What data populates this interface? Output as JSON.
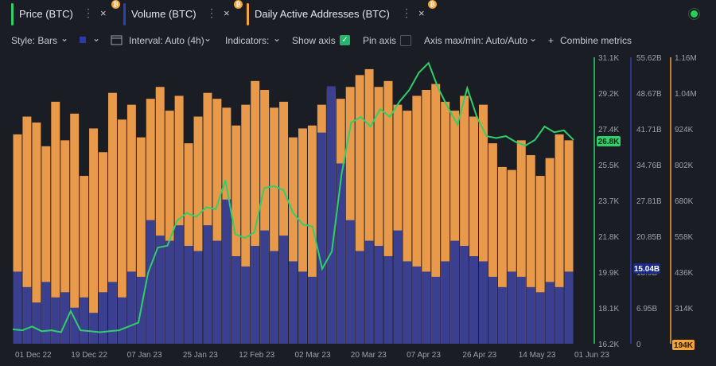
{
  "tabs": [
    {
      "label": "Price (BTC)",
      "color": "#2fd06a",
      "close": "×",
      "more": "⋮",
      "coin": "₿"
    },
    {
      "label": "Volume (BTC)",
      "color": "#2f3fb5",
      "close": "×",
      "more": "⋮",
      "coin": "₿"
    },
    {
      "label": "Daily Active Addresses (BTC)",
      "color": "#f2a33a",
      "close": "×",
      "more": "⋮",
      "coin": "₿"
    }
  ],
  "toolbar": {
    "style": "Style: Bars",
    "interval": "Interval: Auto (4h)",
    "indicators": "Indicators:",
    "show_axis": "Show axis",
    "pin_axis": "Pin axis",
    "axis_maxmin": "Axis max/min: Auto/Auto",
    "combine": "Combine metrics",
    "plus": "+",
    "chev": "⌄"
  },
  "colors": {
    "price": "#2fd06a",
    "volume": "#3a3f8f",
    "active": "#e89a4a",
    "background": "#1b1d25"
  },
  "chart_data": {
    "type": "bar",
    "x_ticks": [
      "01 Dec 22",
      "19 Dec 22",
      "07 Jan 23",
      "25 Jan 23",
      "12 Feb 23",
      "02 Mar 23",
      "20 Mar 23",
      "07 Apr 23",
      "26 Apr 23",
      "14 May 23",
      "01 Jun 23"
    ],
    "price_axis": {
      "ticks": [
        "31.1K",
        "29.2K",
        "27.4K",
        "25.5K",
        "23.7K",
        "21.8K",
        "19.9K",
        "18.1K",
        "16.2K"
      ],
      "ylim": [
        16200,
        31100
      ],
      "current": "26.8K"
    },
    "volume_axis": {
      "ticks": [
        "55.62B",
        "48.67B",
        "41.71B",
        "34.76B",
        "27.81B",
        "20.85B",
        "13.9B",
        "6.95B",
        "0"
      ],
      "ylim": [
        0,
        55620000000
      ],
      "current": "15.04B"
    },
    "active_axis": {
      "ticks": [
        "1.16M",
        "1.04M",
        "924K",
        "802K",
        "680K",
        "558K",
        "436K",
        "314K"
      ],
      "ylim": [
        194000,
        1160000
      ],
      "min_label": "194K"
    },
    "series": [
      {
        "name": "Price (BTC)",
        "style": "line",
        "color": "#2fd06a",
        "values": [
          16950,
          16900,
          17100,
          16850,
          16900,
          16800,
          17900,
          16900,
          16850,
          16800,
          16850,
          16900,
          17100,
          17300,
          19900,
          21200,
          21300,
          22600,
          23000,
          22800,
          23300,
          23200,
          24700,
          21900,
          21700,
          22000,
          24300,
          24400,
          24200,
          23000,
          22400,
          22300,
          20100,
          21000,
          25000,
          27700,
          28000,
          27500,
          28400,
          28000,
          28800,
          29400,
          30300,
          30800,
          29500,
          28500,
          27600,
          29500,
          28000,
          27000,
          26900,
          27000,
          26700,
          26500,
          26800,
          27500,
          27200,
          27300,
          26800
        ]
      },
      {
        "name": "Volume (BTC)",
        "style": "bars",
        "color": "#3a3f8f",
        "values": [
          14000000000.0,
          11000000000.0,
          8000000000.0,
          12000000000.0,
          9000000000.0,
          10000000000.0,
          7000000000.0,
          9000000000.0,
          6000000000.0,
          10000000000.0,
          12000000000.0,
          9000000000.0,
          14000000000.0,
          13000000000.0,
          24000000000.0,
          21000000000.0,
          20000000000.0,
          23000000000.0,
          19000000000.0,
          18000000000.0,
          23000000000.0,
          20000000000.0,
          28000000000.0,
          17000000000.0,
          15000000000.0,
          19000000000.0,
          22000000000.0,
          18000000000.0,
          21000000000.0,
          16000000000.0,
          14000000000.0,
          13000000000.0,
          41000000000.0,
          50000000000.0,
          35000000000.0,
          24000000000.0,
          18000000000.0,
          20000000000.0,
          19000000000.0,
          17000000000.0,
          22000000000.0,
          16000000000.0,
          15000000000.0,
          14000000000.0,
          13000000000.0,
          16000000000.0,
          20000000000.0,
          19000000000.0,
          17000000000.0,
          16000000000.0,
          13000000000.0,
          11000000000.0,
          14000000000.0,
          13000000000.0,
          11000000000.0,
          10000000000.0,
          12000000000.0,
          11000000000.0,
          14000000000.0
        ]
      },
      {
        "name": "Daily Active Addresses (BTC)",
        "style": "bars",
        "color": "#e89a4a",
        "values": [
          900000,
          960000,
          940000,
          860000,
          1010000,
          880000,
          970000,
          760000,
          920000,
          840000,
          1040000,
          950000,
          1000000,
          890000,
          1020000,
          1060000,
          980000,
          1030000,
          870000,
          960000,
          1040000,
          1020000,
          990000,
          930000,
          1000000,
          1080000,
          1050000,
          990000,
          1010000,
          890000,
          920000,
          930000,
          1000000,
          1050000,
          1020000,
          1060000,
          1100000,
          1120000,
          1060000,
          1080000,
          1000000,
          980000,
          1030000,
          1050000,
          1070000,
          1010000,
          980000,
          1030000,
          960000,
          1000000,
          870000,
          790000,
          780000,
          880000,
          830000,
          760000,
          820000,
          900000,
          880000
        ]
      }
    ]
  }
}
